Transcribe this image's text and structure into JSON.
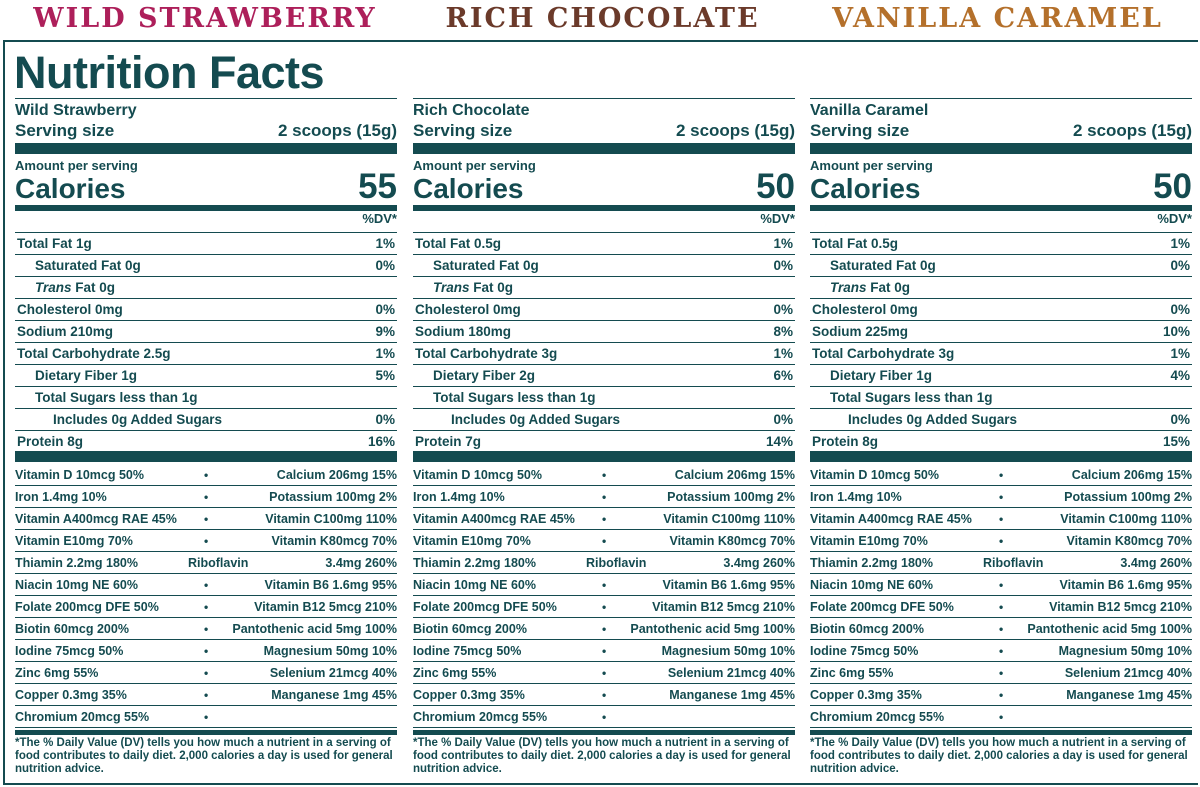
{
  "colors": {
    "teal": "#144b50",
    "strawberry": "#ad1f5a",
    "chocolate": "#6b3a2a",
    "caramel": "#b4702b"
  },
  "headers": [
    "WILD STRAWBERRY",
    "RICH CHOCOLATE",
    "VANILLA CARAMEL"
  ],
  "title": "Nutrition Facts",
  "labels": {
    "serving": "Serving size",
    "amount": "Amount per serving",
    "calories": "Calories",
    "dv": "%DV*",
    "footnote": "*The % Daily Value (DV) tells you how much a nutrient in a serving of food contributes to daily diet. 2,000 calories a day is used for general nutrition advice."
  },
  "panels": [
    {
      "name": "Wild Strawberry",
      "serving": "2 scoops (15g)",
      "calories": "55",
      "nutrients": [
        {
          "label": "Total Fat 1g",
          "dv": "1%"
        },
        {
          "label": "Saturated Fat 0g",
          "dv": "0%"
        },
        {
          "label": "Trans",
          "label2": " Fat 0g",
          "dv": ""
        },
        {
          "label": "Cholesterol 0mg",
          "dv": "0%"
        },
        {
          "label": "Sodium 210mg",
          "dv": "9%"
        },
        {
          "label": "Total Carbohydrate 2.5g",
          "dv": "1%"
        },
        {
          "label": "Dietary Fiber 1g",
          "dv": "5%"
        },
        {
          "label": "Total Sugars less than 1g",
          "dv": ""
        },
        {
          "label": "Includes 0g Added Sugars",
          "dv": "0%"
        },
        {
          "label": "Protein 8g",
          "dv": "16%"
        }
      ],
      "vitamins": [
        {
          "left": "Vitamin D 10mcg 50%",
          "right": "Calcium 206mg 15%"
        },
        {
          "left": "Iron 1.4mg 10%",
          "right": "Potassium 100mg 2%"
        },
        {
          "left": "Vitamin A400mcg RAE 45%",
          "right": "Vitamin C100mg 110%"
        },
        {
          "left": "Vitamin E10mg 70%",
          "right": "Vitamin K80mcg 70%"
        },
        {
          "left": "Thiamin 2.2mg 180%",
          "mid": "Riboflavin",
          "right": "3.4mg 260%"
        },
        {
          "left": "Niacin 10mg NE 60%",
          "right": "Vitamin B6 1.6mg 95%"
        },
        {
          "left": "Folate 200mcg DFE 50%",
          "right": "Vitamin B12 5mcg 210%"
        },
        {
          "left": "Biotin 60mcg 200%",
          "right": "Pantothenic acid 5mg 100%"
        },
        {
          "left": "Iodine 75mcg 50%",
          "right": "Magnesium 50mg 10%"
        },
        {
          "left": "Zinc 6mg 55%",
          "right": "Selenium 21mcg 40%"
        },
        {
          "left": "Copper 0.3mg 35%",
          "right": "Manganese 1mg 45%"
        },
        {
          "left": "Chromium 20mcg 55%",
          "right": ""
        }
      ]
    },
    {
      "name": "Rich Chocolate",
      "serving": "2 scoops (15g)",
      "calories": "50",
      "nutrients": [
        {
          "label": "Total Fat 0.5g",
          "dv": "1%"
        },
        {
          "label": "Saturated Fat 0g",
          "dv": "0%"
        },
        {
          "label": "Trans",
          "label2": " Fat 0g",
          "dv": ""
        },
        {
          "label": "Cholesterol 0mg",
          "dv": "0%"
        },
        {
          "label": "Sodium 180mg",
          "dv": "8%"
        },
        {
          "label": "Total Carbohydrate 3g",
          "dv": "1%"
        },
        {
          "label": "Dietary Fiber 2g",
          "dv": "6%"
        },
        {
          "label": "Total Sugars less than 1g",
          "dv": ""
        },
        {
          "label": "Includes 0g Added Sugars",
          "dv": "0%"
        },
        {
          "label": "Protein 7g",
          "dv": "14%"
        }
      ],
      "vitamins": [
        {
          "left": "Vitamin D 10mcg 50%",
          "right": "Calcium 206mg 15%"
        },
        {
          "left": "Iron 1.4mg 10%",
          "right": "Potassium 100mg 2%"
        },
        {
          "left": "Vitamin A400mcg RAE 45%",
          "right": "Vitamin C100mg 110%"
        },
        {
          "left": "Vitamin E10mg 70%",
          "right": "Vitamin K80mcg 70%"
        },
        {
          "left": "Thiamin 2.2mg 180%",
          "mid": "Riboflavin",
          "right": "3.4mg 260%"
        },
        {
          "left": "Niacin 10mg NE 60%",
          "right": "Vitamin B6 1.6mg 95%"
        },
        {
          "left": "Folate 200mcg DFE 50%",
          "right": "Vitamin B12 5mcg 210%"
        },
        {
          "left": "Biotin 60mcg 200%",
          "right": "Pantothenic acid 5mg 100%"
        },
        {
          "left": "Iodine 75mcg 50%",
          "right": "Magnesium 50mg 10%"
        },
        {
          "left": "Zinc 6mg 55%",
          "right": "Selenium 21mcg 40%"
        },
        {
          "left": "Copper 0.3mg 35%",
          "right": "Manganese 1mg 45%"
        },
        {
          "left": "Chromium 20mcg 55%",
          "right": ""
        }
      ]
    },
    {
      "name": "Vanilla Caramel",
      "serving": "2 scoops (15g)",
      "calories": "50",
      "nutrients": [
        {
          "label": "Total Fat 0.5g",
          "dv": "1%"
        },
        {
          "label": "Saturated Fat 0g",
          "dv": "0%"
        },
        {
          "label": "Trans",
          "label2": " Fat 0g",
          "dv": ""
        },
        {
          "label": "Cholesterol 0mg",
          "dv": "0%"
        },
        {
          "label": "Sodium 225mg",
          "dv": "10%"
        },
        {
          "label": "Total Carbohydrate 3g",
          "dv": "1%"
        },
        {
          "label": "Dietary Fiber 1g",
          "dv": "4%"
        },
        {
          "label": "Total Sugars less than 1g",
          "dv": ""
        },
        {
          "label": "Includes 0g Added Sugars",
          "dv": "0%"
        },
        {
          "label": "Protein 8g",
          "dv": "15%"
        }
      ],
      "vitamins": [
        {
          "left": "Vitamin D 10mcg 50%",
          "right": "Calcium 206mg 15%"
        },
        {
          "left": "Iron 1.4mg 10%",
          "right": "Potassium 100mg 2%"
        },
        {
          "left": "Vitamin A400mcg RAE 45%",
          "right": "Vitamin C100mg 110%"
        },
        {
          "left": "Vitamin E10mg 70%",
          "right": "Vitamin K80mcg 70%"
        },
        {
          "left": "Thiamin 2.2mg 180%",
          "mid": "Riboflavin",
          "right": "3.4mg 260%"
        },
        {
          "left": "Niacin 10mg NE 60%",
          "right": "Vitamin B6 1.6mg 95%"
        },
        {
          "left": "Folate 200mcg DFE 50%",
          "right": "Vitamin B12 5mcg 210%"
        },
        {
          "left": "Biotin 60mcg 200%",
          "right": "Pantothenic acid 5mg 100%"
        },
        {
          "left": "Iodine 75mcg 50%",
          "right": "Magnesium 50mg 10%"
        },
        {
          "left": "Zinc 6mg 55%",
          "right": "Selenium 21mcg 40%"
        },
        {
          "left": "Copper 0.3mg 35%",
          "right": "Manganese 1mg 45%"
        },
        {
          "left": "Chromium 20mcg 55%",
          "right": ""
        }
      ]
    }
  ]
}
